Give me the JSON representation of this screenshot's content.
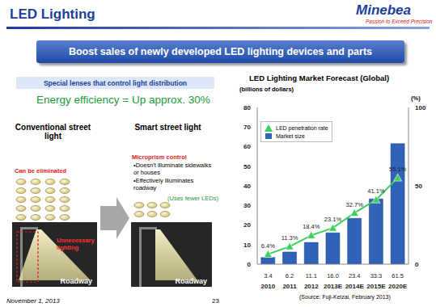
{
  "chart_data": {
    "type": "bar",
    "title": "LED Lighting Market Forecast (Global)",
    "y_label": "(billions of dollars)",
    "y2_label": "(%)",
    "categories": [
      "2010",
      "2011",
      "2012",
      "2013E",
      "2014E",
      "2015E",
      "2020E"
    ],
    "series": [
      {
        "name": "Market size",
        "type": "bar",
        "color": "#2f62b8",
        "values": [
          3.4,
          6.2,
          11.1,
          16.0,
          23.4,
          33.3,
          61.5
        ],
        "value_labels": [
          "3.4",
          "6.2",
          "11.1",
          "16.0",
          "23.4",
          "33.3",
          "61.5"
        ]
      },
      {
        "name": "LED penetration rate",
        "type": "line",
        "axis": "y2",
        "color": "#3ccf5a",
        "marker": "triangle",
        "values": [
          6.4,
          11.3,
          18.4,
          23.1,
          32.7,
          41.1,
          55.1
        ],
        "value_labels": [
          "6.4%",
          "11.3%",
          "18.4%",
          "23.1%",
          "32.7%",
          "41.1%",
          "55.1%"
        ]
      }
    ],
    "ylim": [
      0,
      80
    ],
    "yticks": [
      0,
      10,
      20,
      30,
      40,
      50,
      60,
      70,
      80
    ],
    "y2lim": [
      0,
      100
    ],
    "y2ticks": [
      0,
      50,
      100
    ],
    "data_labels": true,
    "legend": "upper left",
    "grid": false,
    "source": "(Source: Fuji-Keizai, February 2013)"
  },
  "slide": {
    "title": "LED Lighting",
    "logo": "Minebea",
    "tagline": "Passion to Exceed Precision",
    "banner": "Boost sales of newly developed LED lighting devices and parts",
    "heading": "Special lenses that control light distribution",
    "efficiency": "Energy efficiency = Up approx. 30%",
    "conventional": {
      "label": "Conventional street light",
      "eliminated": "Can be eliminated",
      "unnecessary": "Unnecessary lighting",
      "road": "Roadway"
    },
    "smart": {
      "label": "Smart street light",
      "control": "Microprism control",
      "bullets": [
        "•Doesn't illuminate sidewalks or houses",
        "•Effectively illuminates roadway"
      ],
      "fewer": "(Uses fewer LEDs)",
      "road": "Roadway"
    },
    "date": "November 1, 2013",
    "page": "23"
  }
}
